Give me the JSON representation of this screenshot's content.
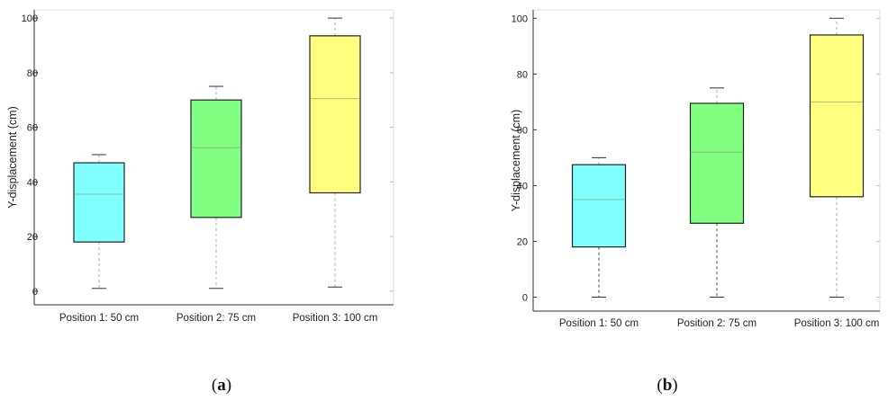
{
  "chart_data": [
    {
      "type": "box",
      "panel_label": "a",
      "ylabel": "Y-displacement (cm)",
      "xlabel": "",
      "ylim": [
        -5,
        103
      ],
      "yticks": [
        0,
        20,
        40,
        60,
        80,
        100
      ],
      "categories": [
        "Position 1: 50 cm",
        "Position 2: 75 cm",
        "Position 3: 100 cm"
      ],
      "series": [
        {
          "min": 1,
          "q1": 18,
          "median": 35.5,
          "q3": 47,
          "max": 50,
          "color": "#80ffff"
        },
        {
          "min": 1,
          "q1": 27,
          "median": 52.5,
          "q3": 70,
          "max": 75,
          "color": "#80ff80"
        },
        {
          "min": 1.5,
          "q1": 36,
          "median": 70.5,
          "q3": 93.5,
          "max": 100,
          "color": "#ffff80"
        }
      ]
    },
    {
      "type": "box",
      "panel_label": "b",
      "ylabel": "Y-displacement (cm)",
      "xlabel": "",
      "ylim": [
        -5,
        103
      ],
      "yticks": [
        0,
        20,
        40,
        60,
        80,
        100
      ],
      "categories": [
        "Position 1: 50 cm",
        "Position 2: 75 cm",
        "Position 3: 100 cm"
      ],
      "series": [
        {
          "min": 0,
          "q1": 18,
          "median": 35,
          "q3": 47.5,
          "max": 50,
          "color": "#80ffff"
        },
        {
          "min": 0,
          "q1": 26.5,
          "median": 52,
          "q3": 69.5,
          "max": 75,
          "color": "#80ff80"
        },
        {
          "min": 0,
          "q1": 36,
          "median": 70,
          "q3": 94,
          "max": 100,
          "color": "#ffff80"
        }
      ]
    }
  ],
  "captions": [
    {
      "open": "(",
      "label": "a",
      "close": ")"
    },
    {
      "open": "(",
      "label": "b",
      "close": ")"
    }
  ]
}
